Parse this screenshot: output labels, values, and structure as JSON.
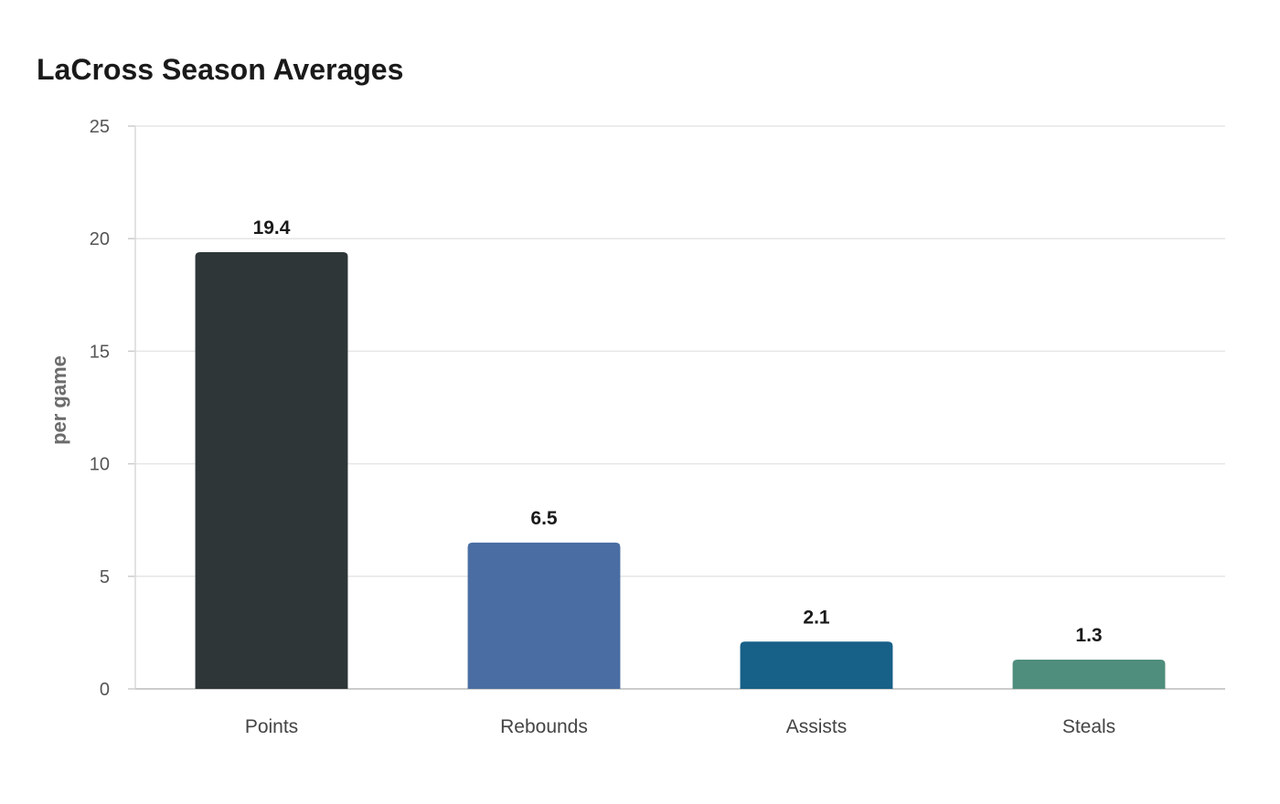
{
  "chart_data": {
    "type": "bar",
    "title": "LaCross Season Averages",
    "xlabel": "",
    "ylabel": "per game",
    "categories": [
      "Points",
      "Rebounds",
      "Assists",
      "Steals"
    ],
    "values": [
      19.4,
      6.5,
      2.1,
      1.3
    ],
    "value_labels": [
      "19.4",
      "6.5",
      "2.1",
      "1.3"
    ],
    "colors": [
      "#2e3638",
      "#4a6ea3",
      "#176088",
      "#4f8e7c"
    ],
    "ylim": [
      0,
      25
    ],
    "yticks": [
      0,
      5,
      10,
      15,
      20,
      25
    ],
    "grid": true,
    "legend": "none"
  }
}
